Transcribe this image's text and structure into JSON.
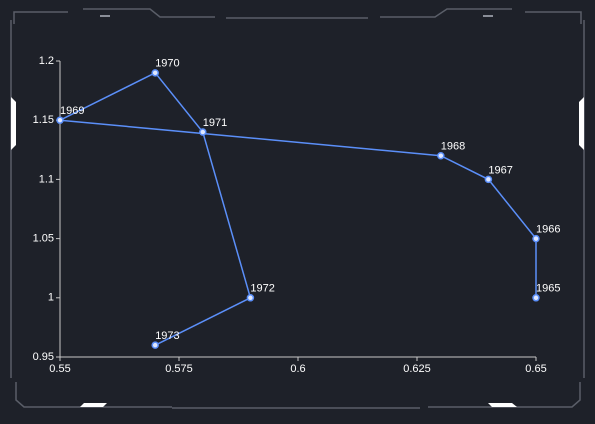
{
  "chart_data": {
    "type": "line",
    "x": [
      0.65,
      0.65,
      0.64,
      0.63,
      0.55,
      0.57,
      0.58,
      0.59,
      0.57
    ],
    "values": [
      1,
      1.05,
      1.1,
      1.12,
      1.15,
      1.19,
      1.14,
      1,
      0.96
    ],
    "point_labels": [
      "1965",
      "1966",
      "1967",
      "1968",
      "1969",
      "1970",
      "1971",
      "1972",
      "1973"
    ],
    "color": "#5b8ff9",
    "xlim": [
      0.55,
      0.65
    ],
    "ylim": [
      0.95,
      1.2
    ],
    "xticks": [
      0.55,
      0.575,
      0.6,
      0.625,
      0.65
    ],
    "yticks": [
      0.95,
      1,
      1.05,
      1.1,
      1.15,
      1.2
    ],
    "grid": false
  }
}
